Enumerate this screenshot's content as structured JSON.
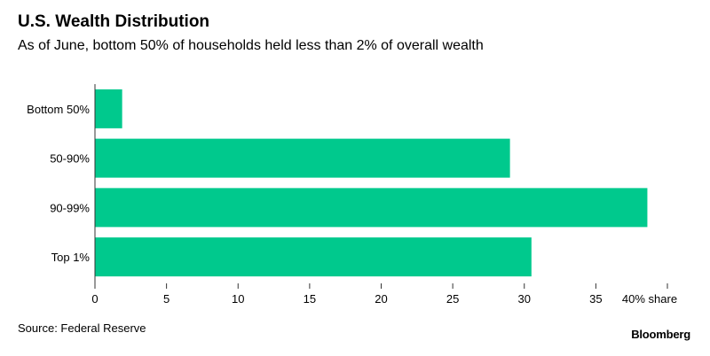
{
  "header": {
    "title": "U.S. Wealth Distribution",
    "subtitle": "As of June, bottom 50% of households held less than 2% of overall wealth"
  },
  "footer": {
    "source": "Source: Federal Reserve",
    "logo": "Bloomberg"
  },
  "colors": {
    "bar": "#00c98d",
    "axis": "#333333",
    "background": "#ffffff"
  },
  "chart_data": {
    "type": "bar",
    "orientation": "horizontal",
    "title": "U.S. Wealth Distribution",
    "subtitle": "As of June, bottom 50% of households held less than 2% of overall wealth",
    "categories": [
      "Bottom 50%",
      "50-90%",
      "90-99%",
      "Top 1%"
    ],
    "values": [
      1.9,
      29.0,
      38.6,
      30.5
    ],
    "xlabel": "",
    "ylabel": "",
    "xlim": [
      0,
      40
    ],
    "xticks": [
      0,
      5,
      10,
      15,
      20,
      25,
      30,
      35,
      40
    ],
    "xtick_labels": [
      "0",
      "5",
      "10",
      "15",
      "20",
      "25",
      "30",
      "35",
      "40% share"
    ],
    "grid": false,
    "legend": "none"
  }
}
